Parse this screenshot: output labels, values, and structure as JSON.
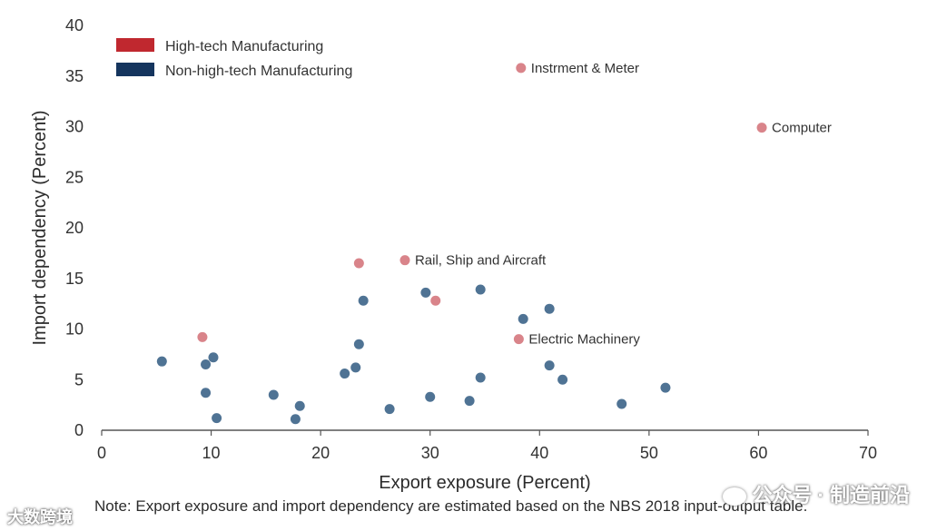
{
  "chart_data": {
    "type": "scatter",
    "title": "",
    "xlabel": "Export exposure (Percent)",
    "ylabel": "Import dependency (Percent)",
    "xlim": [
      0,
      70
    ],
    "ylim": [
      0,
      40
    ],
    "xticks": [
      0,
      10,
      20,
      30,
      40,
      50,
      60,
      70
    ],
    "yticks": [
      0,
      5,
      10,
      15,
      20,
      25,
      30,
      35,
      40
    ],
    "grid": false,
    "legend": "top-left",
    "series": [
      {
        "name": "High-tech Manufacturing",
        "color": "#c0282f",
        "legend_color": "#c0282f",
        "marker_color": "#d9848a",
        "points": [
          {
            "x": 9.2,
            "y": 9.2,
            "label": ""
          },
          {
            "x": 23.5,
            "y": 16.5,
            "label": ""
          },
          {
            "x": 27.7,
            "y": 16.8,
            "label": "Rail, Ship and Aircraft"
          },
          {
            "x": 30.5,
            "y": 12.8,
            "label": ""
          },
          {
            "x": 38.3,
            "y": 35.8,
            "label": "Instrment & Meter"
          },
          {
            "x": 38.1,
            "y": 9.0,
            "label": "Electric Machinery"
          },
          {
            "x": 60.3,
            "y": 29.9,
            "label": "Computer"
          }
        ]
      },
      {
        "name": "Non-high-tech Manufacturing",
        "color": "#15355e",
        "legend_color": "#15355e",
        "marker_color": "#4f7394",
        "points": [
          {
            "x": 5.5,
            "y": 6.8
          },
          {
            "x": 9.5,
            "y": 6.5
          },
          {
            "x": 10.2,
            "y": 7.2
          },
          {
            "x": 9.5,
            "y": 3.7
          },
          {
            "x": 10.5,
            "y": 1.2
          },
          {
            "x": 15.7,
            "y": 3.5
          },
          {
            "x": 17.7,
            "y": 1.1
          },
          {
            "x": 18.1,
            "y": 2.4
          },
          {
            "x": 22.2,
            "y": 5.6
          },
          {
            "x": 23.2,
            "y": 6.2
          },
          {
            "x": 23.5,
            "y": 8.5
          },
          {
            "x": 23.9,
            "y": 12.8
          },
          {
            "x": 26.3,
            "y": 2.1
          },
          {
            "x": 29.6,
            "y": 13.6
          },
          {
            "x": 30.0,
            "y": 3.3
          },
          {
            "x": 33.6,
            "y": 2.9
          },
          {
            "x": 34.6,
            "y": 13.9
          },
          {
            "x": 34.6,
            "y": 5.2
          },
          {
            "x": 38.5,
            "y": 11.0
          },
          {
            "x": 40.9,
            "y": 12.0
          },
          {
            "x": 40.9,
            "y": 6.4
          },
          {
            "x": 42.1,
            "y": 5.0
          },
          {
            "x": 47.5,
            "y": 2.6
          },
          {
            "x": 51.5,
            "y": 4.2
          }
        ]
      }
    ],
    "note": "Note: Export exposure and import dependency are estimated based on the NBS 2018 input-output table."
  },
  "watermarks": {
    "left": "大数跨境",
    "right": "公众号 · 制造前沿"
  }
}
